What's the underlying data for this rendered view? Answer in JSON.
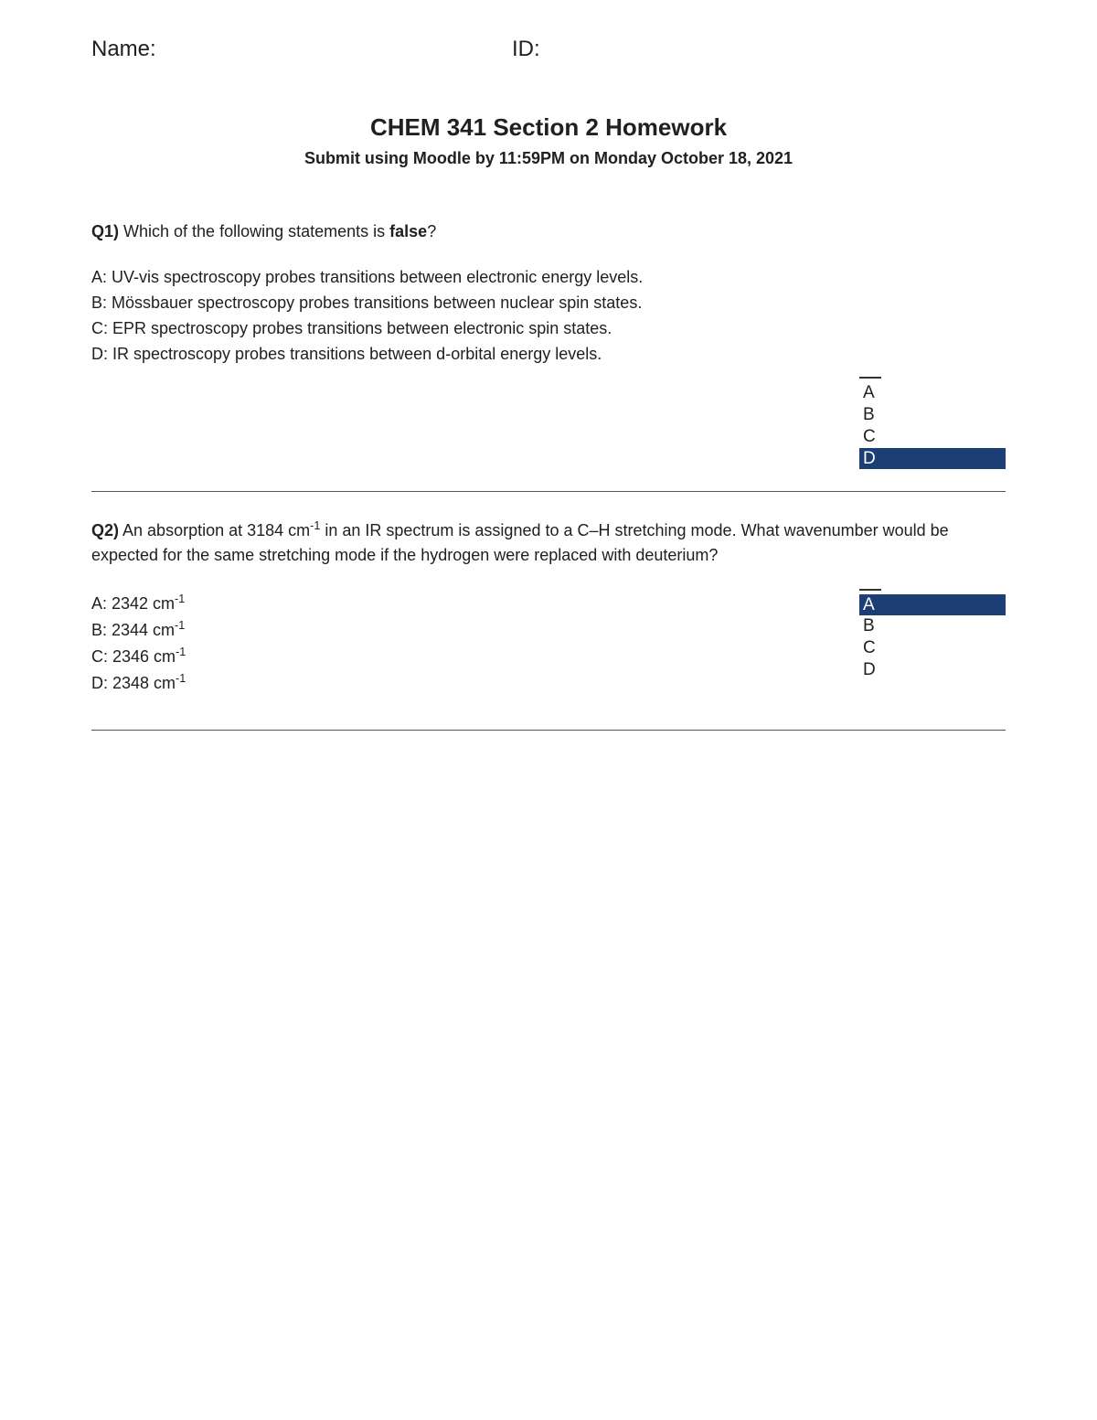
{
  "header": {
    "name_label": "Name:",
    "id_label": "ID:"
  },
  "title": "CHEM 341 Section 2 Homework",
  "subtitle": "Submit using Moodle by 11:59PM on Monday October 18, 2021",
  "q1": {
    "num": "Q1)",
    "prompt_before": " Which of the following statements is ",
    "emph": "false",
    "prompt_after": "?",
    "choices": {
      "A": "A: UV-vis spectroscopy probes transitions between electronic energy levels.",
      "B": "B: Mössbauer spectroscopy probes transitions between nuclear spin states.",
      "C": "C: EPR spectroscopy probes transitions between electronic spin states.",
      "D": "D: IR spectroscopy probes transitions between d-orbital energy levels."
    },
    "answer_options": [
      "A",
      "B",
      "C",
      "D"
    ],
    "selected": "D"
  },
  "q2": {
    "num": "Q2)",
    "prompt_html": " An absorption at 3184 cm<sup>-1</sup> in an IR spectrum is assigned to a C–H stretching mode. What wavenumber would be expected for the same stretching mode if the hydrogen were replaced with deuterium?",
    "choices_html": {
      "A": "A: 2342 cm<sup>-1</sup>",
      "B": "B: 2344 cm<sup>-1</sup>",
      "C": "C: 2346 cm<sup>-1</sup>",
      "D": "D: 2348 cm<sup>-1</sup>"
    },
    "answer_options": [
      "A",
      "B",
      "C",
      "D"
    ],
    "selected": "A"
  },
  "colors": {
    "highlight_bg": "#1d3e75",
    "highlight_fg": "#ffffff",
    "background": "#ffffff",
    "text": "#202020",
    "rule": "#555555"
  }
}
